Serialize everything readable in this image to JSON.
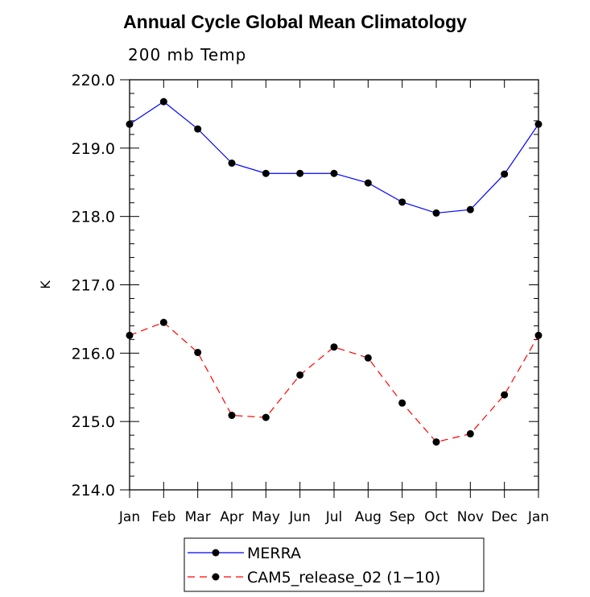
{
  "chart_data": {
    "type": "line",
    "title": "Annual Cycle Global Mean Climatology",
    "subtitle": "200 mb Temp",
    "xlabel": "",
    "ylabel": "K",
    "categories": [
      "Jan",
      "Feb",
      "Mar",
      "Apr",
      "May",
      "Jun",
      "Jul",
      "Aug",
      "Sep",
      "Oct",
      "Nov",
      "Dec",
      "Jan"
    ],
    "ylim": [
      214.0,
      220.0
    ],
    "yticks": [
      "214.0",
      "215.0",
      "216.0",
      "217.0",
      "218.0",
      "219.0",
      "220.0"
    ],
    "grid": false,
    "legend_position": "bottom",
    "series": [
      {
        "name": "MERRA",
        "color": "#0000ff",
        "dash": "solid",
        "values": [
          219.35,
          219.68,
          219.28,
          218.78,
          218.63,
          218.63,
          218.63,
          218.49,
          218.21,
          218.05,
          218.1,
          218.62,
          219.35
        ]
      },
      {
        "name": "CAM5_release_02 (1−10)",
        "color": "#ff0000",
        "dash": "dashed",
        "values": [
          216.26,
          216.45,
          216.01,
          215.09,
          215.06,
          215.68,
          216.09,
          215.93,
          215.27,
          214.7,
          214.82,
          215.39,
          216.26
        ]
      }
    ]
  }
}
